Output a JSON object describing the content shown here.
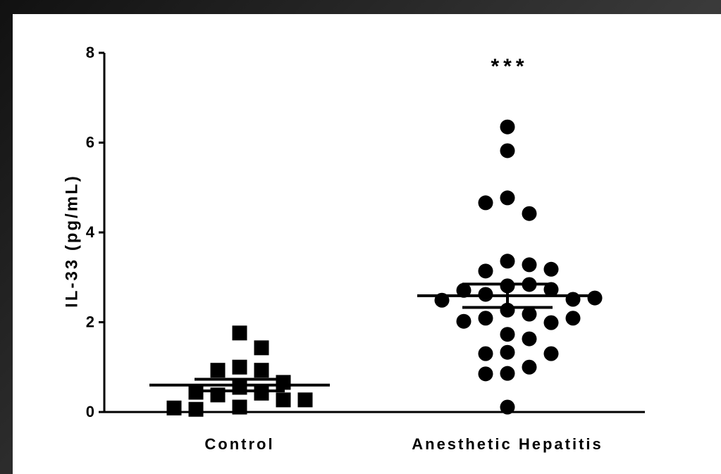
{
  "chart_data": {
    "type": "scatter",
    "y_label": "IL-33 (pg/mL)",
    "categories": [
      "Control",
      "Anesthetic Hepatitis"
    ],
    "annotations": [
      {
        "text": "***",
        "category": 1
      }
    ],
    "ylim": [
      0,
      8
    ],
    "yticks": [
      0,
      2,
      4,
      6,
      8
    ],
    "series": [
      {
        "name": "Control",
        "color": "#000000",
        "marker": "square",
        "values": [
          1.76,
          1.43,
          1.0,
          0.93,
          0.93,
          0.66,
          0.55,
          0.42,
          0.38,
          0.44,
          0.27,
          0.27,
          0.11,
          0.06,
          0.09
        ],
        "mean": 0.6,
        "sem": 0.13
      },
      {
        "name": "Anesthetic Hepatitis",
        "color": "#000000",
        "marker": "circle",
        "values": [
          6.35,
          5.82,
          4.77,
          4.42,
          4.66,
          3.36,
          3.28,
          3.14,
          3.18,
          2.81,
          2.84,
          2.62,
          2.73,
          2.71,
          2.51,
          2.49,
          2.54,
          2.27,
          2.18,
          2.09,
          1.99,
          2.02,
          2.09,
          1.73,
          1.63,
          1.33,
          1.3,
          1.3,
          1.0,
          0.86,
          0.85,
          0.11
        ],
        "mean": 2.59,
        "sem": 0.26
      }
    ]
  }
}
